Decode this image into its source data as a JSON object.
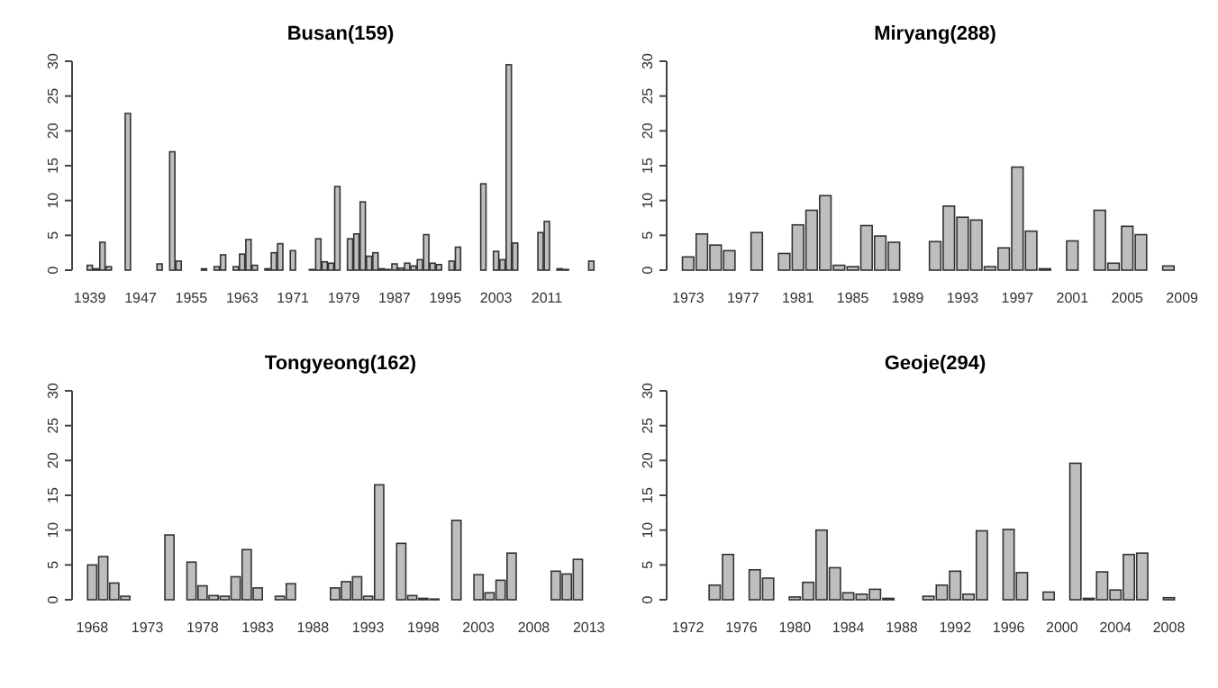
{
  "chart_data": [
    {
      "type": "bar",
      "title": "Busan(159)",
      "color": "#bebebe",
      "ylim": [
        0,
        30
      ],
      "yticks": [
        0,
        5,
        10,
        15,
        20,
        25,
        30
      ],
      "categories": [
        "1939",
        null,
        null,
        null,
        null,
        null,
        null,
        null,
        "1947",
        null,
        null,
        null,
        null,
        null,
        null,
        null,
        "1955",
        null,
        null,
        null,
        null,
        null,
        null,
        null,
        "1963",
        null,
        null,
        null,
        null,
        null,
        null,
        null,
        "1971",
        null,
        null,
        null,
        null,
        null,
        null,
        null,
        "1979",
        null,
        null,
        null,
        null,
        null,
        null,
        null,
        "1987",
        null,
        null,
        null,
        null,
        null,
        null,
        null,
        "1995",
        null,
        null,
        null,
        null,
        null,
        null,
        null,
        "2003",
        null,
        null,
        null,
        null,
        null,
        null,
        null,
        "2011",
        null,
        null,
        null,
        null,
        null,
        null,
        null
      ],
      "values": [
        0.7,
        0.2,
        4.0,
        0.5,
        0,
        0,
        22.5,
        0,
        0,
        0,
        0,
        0.9,
        0,
        17,
        1.3,
        0,
        0,
        0,
        0.2,
        0,
        0.5,
        2.2,
        0,
        0.5,
        2.3,
        4.4,
        0.7,
        0,
        0.2,
        2.5,
        3.8,
        0,
        2.8,
        0,
        0,
        0.1,
        4.5,
        1.2,
        1.0,
        12,
        0,
        4.5,
        5.2,
        9.8,
        2.0,
        2.5,
        0.2,
        0.1,
        0.9,
        0.3,
        1.0,
        0.6,
        1.5,
        5.1,
        1.0,
        0.8,
        0,
        1.3,
        3.3,
        0,
        0,
        0,
        12.4,
        0,
        2.7,
        1.5,
        29.5,
        3.9,
        0,
        0,
        0,
        5.4,
        7.0,
        0,
        0.2,
        0.1,
        0,
        0,
        0,
        1.3
      ]
    },
    {
      "type": "bar",
      "title": "Miryang(288)",
      "color": "#bebebe",
      "ylim": [
        0,
        30
      ],
      "yticks": [
        0,
        5,
        10,
        15,
        20,
        25,
        30
      ],
      "categories": [
        "1973",
        null,
        null,
        null,
        "1977",
        null,
        null,
        null,
        "1981",
        null,
        null,
        null,
        "1985",
        null,
        null,
        null,
        "1989",
        null,
        null,
        null,
        "1993",
        null,
        null,
        null,
        "1997",
        null,
        null,
        null,
        "2001",
        null,
        null,
        null,
        "2005",
        null,
        null,
        null,
        "2009"
      ],
      "values": [
        1.9,
        5.2,
        3.6,
        2.8,
        0,
        5.4,
        0,
        2.4,
        6.5,
        8.6,
        10.7,
        0.7,
        0.5,
        6.4,
        4.9,
        4.0,
        0,
        0,
        4.1,
        9.2,
        7.6,
        7.2,
        0.5,
        3.2,
        14.8,
        5.6,
        0.2,
        0,
        4.2,
        0,
        8.6,
        1.0,
        6.3,
        5.1,
        0,
        0.6,
        0
      ]
    },
    {
      "type": "bar",
      "title": "Tongyeong(162)",
      "color": "#bebebe",
      "ylim": [
        0,
        30
      ],
      "yticks": [
        0,
        5,
        10,
        15,
        20,
        25,
        30
      ],
      "categories": [
        "1968",
        null,
        null,
        null,
        null,
        "1973",
        null,
        null,
        null,
        null,
        "1978",
        null,
        null,
        null,
        null,
        "1983",
        null,
        null,
        null,
        null,
        "1988",
        null,
        null,
        null,
        null,
        "1993",
        null,
        null,
        null,
        null,
        "1998",
        null,
        null,
        null,
        null,
        "2003",
        null,
        null,
        null,
        null,
        "2008",
        null,
        null,
        null,
        null,
        "2013"
      ],
      "values": [
        5.0,
        6.2,
        2.4,
        0.5,
        0,
        0,
        0,
        9.3,
        0,
        5.4,
        2.0,
        0.6,
        0.5,
        3.3,
        7.2,
        1.7,
        0,
        0.5,
        2.3,
        0,
        0,
        0,
        1.7,
        2.6,
        3.3,
        0.5,
        16.5,
        0,
        8.1,
        0.6,
        0.2,
        0.1,
        0,
        11.4,
        0,
        3.6,
        1.0,
        2.8,
        6.7,
        0,
        0,
        0,
        4.1,
        3.7,
        5.8,
        0
      ]
    },
    {
      "type": "bar",
      "title": "Geoje(294)",
      "color": "#bebebe",
      "ylim": [
        0,
        30
      ],
      "yticks": [
        0,
        5,
        10,
        15,
        20,
        25,
        30
      ],
      "categories": [
        "1972",
        null,
        null,
        null,
        "1976",
        null,
        null,
        null,
        "1980",
        null,
        null,
        null,
        "1984",
        null,
        null,
        null,
        "1988",
        null,
        null,
        null,
        "1992",
        null,
        null,
        null,
        "1996",
        null,
        null,
        null,
        "2000",
        null,
        null,
        null,
        "2004",
        null,
        null,
        null,
        "2008",
        null
      ],
      "values": [
        0,
        0,
        2.1,
        6.5,
        0,
        4.3,
        3.1,
        0,
        0.4,
        2.5,
        10.0,
        4.6,
        1.0,
        0.8,
        1.5,
        0.2,
        0,
        0,
        0.5,
        2.1,
        4.1,
        0.8,
        9.9,
        0,
        10.1,
        3.9,
        0,
        1.1,
        0,
        19.6,
        0.2,
        4.0,
        1.4,
        6.5,
        6.7,
        0,
        0.3,
        0
      ]
    }
  ]
}
